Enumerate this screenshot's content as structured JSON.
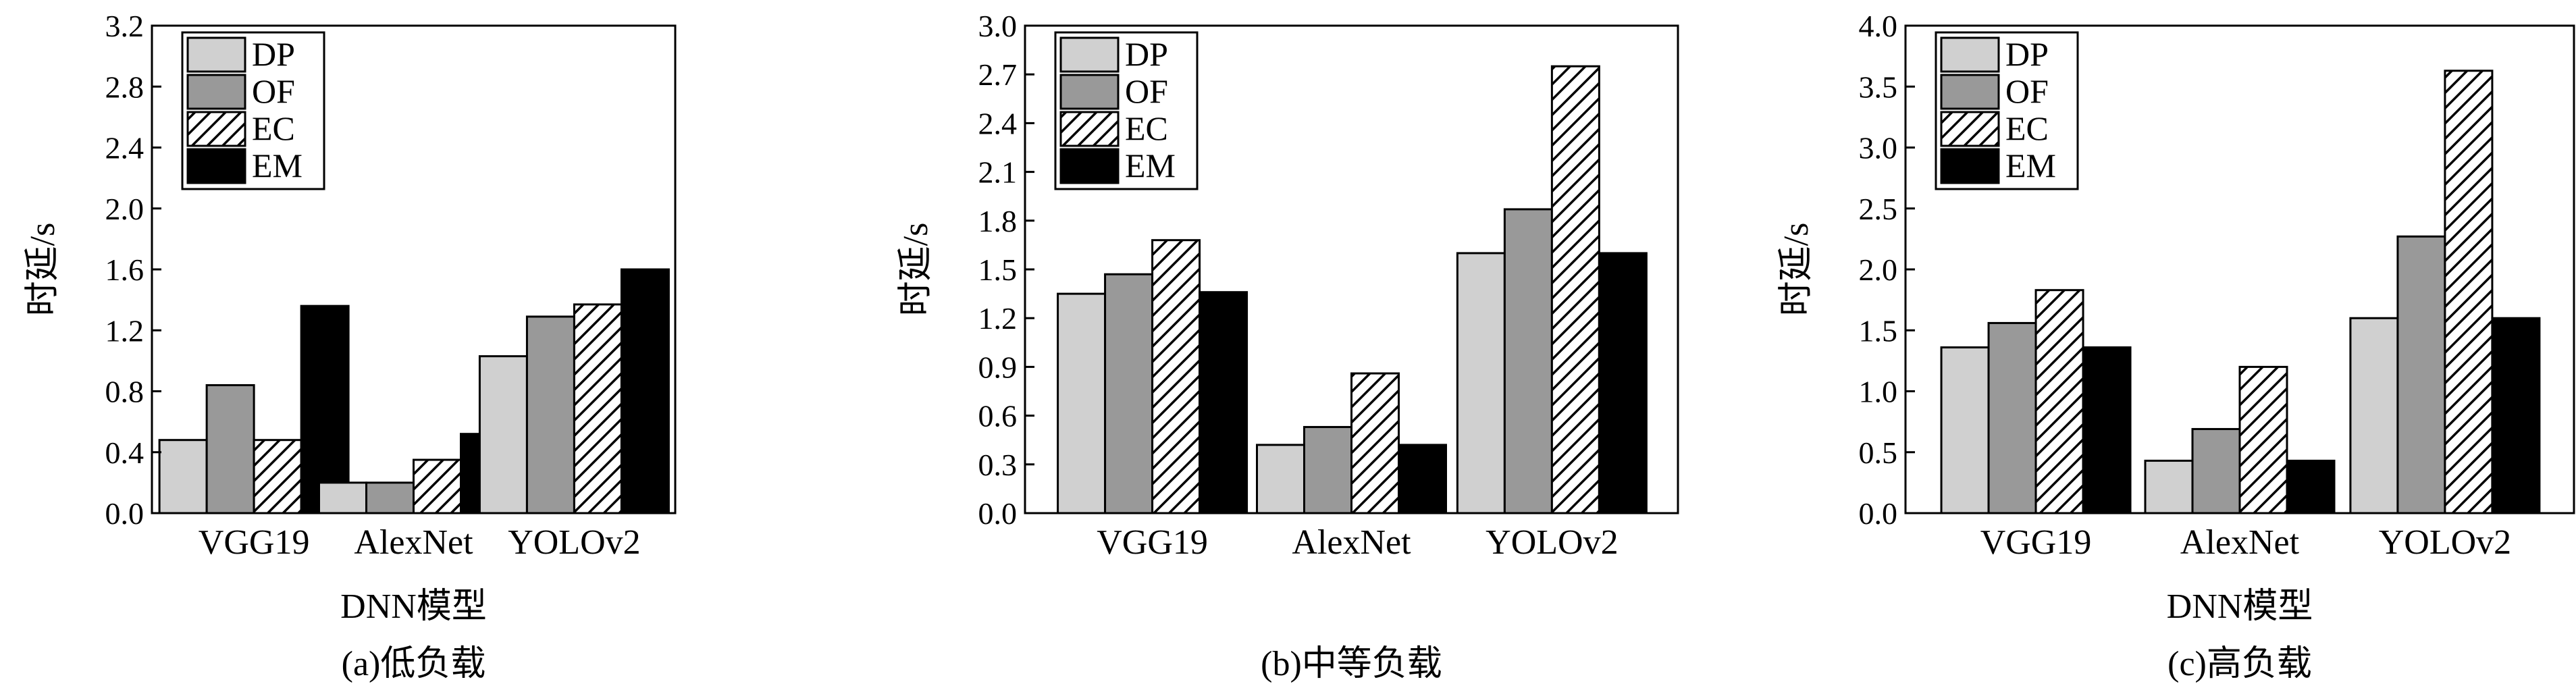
{
  "chart_data": [
    {
      "type": "bar",
      "caption": "(a)低负载",
      "xlabel": "DNN模型",
      "ylabel": "时延/s",
      "ylim": [
        0,
        3.2
      ],
      "yticks": [
        "0.0",
        "0.4",
        "0.8",
        "1.2",
        "1.6",
        "2.0",
        "2.4",
        "2.8",
        "3.2"
      ],
      "categories": [
        "VGG19",
        "AlexNet",
        "YOLOv2"
      ],
      "series": [
        {
          "name": "DP",
          "values": [
            0.48,
            0.2,
            1.03
          ]
        },
        {
          "name": "OF",
          "values": [
            0.84,
            0.2,
            1.29
          ]
        },
        {
          "name": "EC",
          "values": [
            0.48,
            0.35,
            1.37
          ]
        },
        {
          "name": "EM",
          "values": [
            1.36,
            0.52,
            1.6
          ]
        }
      ],
      "legend": "top-left"
    },
    {
      "type": "bar",
      "caption": "(b)中等负载",
      "xlabel": "",
      "ylabel": "时延/s",
      "ylim": [
        0,
        3.0
      ],
      "yticks": [
        "0.0",
        "0.3",
        "0.6",
        "0.9",
        "1.2",
        "1.5",
        "1.8",
        "2.1",
        "2.4",
        "2.7",
        "3.0"
      ],
      "categories": [
        "VGG19",
        "AlexNet",
        "YOLOv2"
      ],
      "series": [
        {
          "name": "DP",
          "values": [
            1.35,
            0.42,
            1.6
          ]
        },
        {
          "name": "OF",
          "values": [
            1.47,
            0.53,
            1.87
          ]
        },
        {
          "name": "EC",
          "values": [
            1.68,
            0.86,
            2.75
          ]
        },
        {
          "name": "EM",
          "values": [
            1.36,
            0.42,
            1.6
          ]
        }
      ],
      "legend": "top-left"
    },
    {
      "type": "bar",
      "caption": "(c)高负载",
      "xlabel": "DNN模型",
      "ylabel": "时延/s",
      "ylim": [
        0,
        4.0
      ],
      "yticks": [
        "0.0",
        "0.5",
        "1.0",
        "1.5",
        "2.0",
        "2.5",
        "3.0",
        "3.5",
        "4.0"
      ],
      "categories": [
        "VGG19",
        "AlexNet",
        "YOLOv2"
      ],
      "series": [
        {
          "name": "DP",
          "values": [
            1.36,
            0.43,
            1.6
          ]
        },
        {
          "name": "OF",
          "values": [
            1.56,
            0.69,
            2.27
          ]
        },
        {
          "name": "EC",
          "values": [
            1.83,
            1.2,
            3.63
          ]
        },
        {
          "name": "EM",
          "values": [
            1.36,
            0.43,
            1.6
          ]
        }
      ],
      "legend": "top-left"
    }
  ],
  "colors": {
    "DP": "#d0d0d0",
    "OF": "#999999",
    "EC": "hatch",
    "EM": "#000000"
  }
}
